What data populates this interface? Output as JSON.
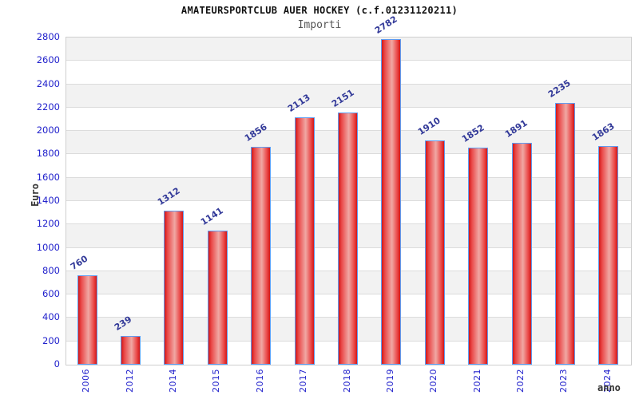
{
  "header": {
    "title": "AMATEURSPORTCLUB AUER HOCKEY (c.f.01231120211)",
    "subtitle": "Importi"
  },
  "chart_data": {
    "type": "bar",
    "title": "AMATEURSPORTCLUB AUER HOCKEY (c.f.01231120211)",
    "subtitle": "Importi",
    "categories": [
      "2006",
      "2012",
      "2014",
      "2015",
      "2016",
      "2017",
      "2018",
      "2019",
      "2020",
      "2021",
      "2022",
      "2023",
      "2024"
    ],
    "values": [
      760,
      239,
      1312,
      1141,
      1856,
      2113,
      2151,
      2782,
      1910,
      1852,
      1891,
      2235,
      1863
    ],
    "xlabel": "anno",
    "ylabel": "Euro",
    "ylim": [
      0,
      2800
    ],
    "ytick_step": 200,
    "grid": true,
    "legend": "none",
    "colors": {
      "bar_fill_edge": "#d21717",
      "bar_fill_inner": "#ea4848",
      "bar_fill_mid": "#f0a8a4",
      "bar_border": "#5f9df2",
      "tick_label": "#2222cc",
      "value_label": "#333a99",
      "band_gray": "#f2f2f2",
      "gridline": "#dcdcdc",
      "title_color": "#111111",
      "subtitle_color": "#555555",
      "axis_title_color": "#333333"
    }
  }
}
